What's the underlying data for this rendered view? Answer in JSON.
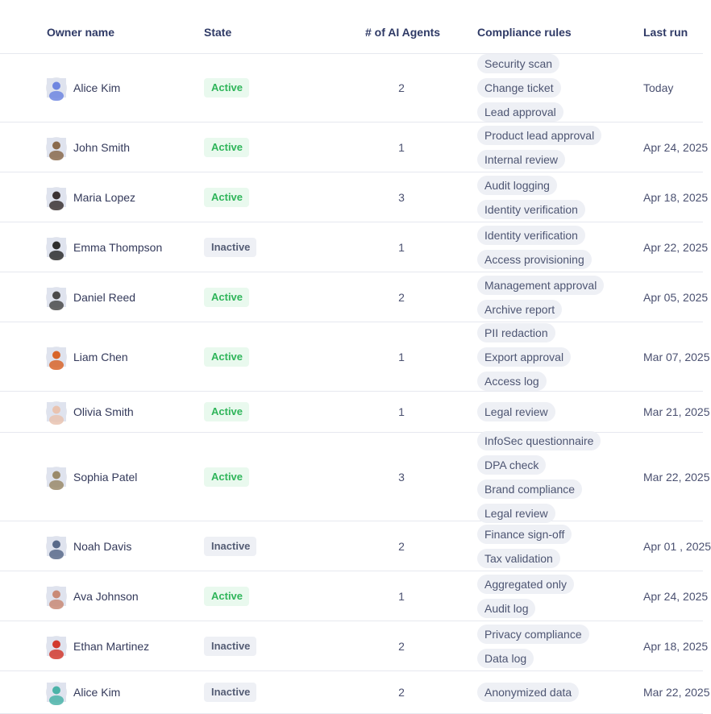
{
  "header": {
    "owner": "Owner name",
    "state": "State",
    "agents": "# of AI Agents",
    "rules": "Compliance rules",
    "last": "Last run"
  },
  "rows": [
    {
      "name": "Alice Kim",
      "state": "Active",
      "agents": "2",
      "rules": [
        "Security scan",
        "Change ticket",
        "Lead approval"
      ],
      "last": "Today",
      "avatar": "#6f86e0"
    },
    {
      "name": "John Smith",
      "state": "Active",
      "agents": "1",
      "rules": [
        "Product lead approval",
        "Internal review"
      ],
      "last": "Apr 24, 2025",
      "avatar": "#8a6a4c"
    },
    {
      "name": "Maria Lopez",
      "state": "Active",
      "agents": "3",
      "rules": [
        "Audit logging",
        "Identity verification"
      ],
      "last": "Apr 18, 2025",
      "avatar": "#3b3333"
    },
    {
      "name": "Emma Thompson",
      "state": "Inactive",
      "agents": "1",
      "rules": [
        "Identity verification",
        "Access provisioning"
      ],
      "last": "Apr 22, 2025",
      "avatar": "#2d2d2d"
    },
    {
      "name": "Daniel Reed",
      "state": "Active",
      "agents": "2",
      "rules": [
        "Management approval",
        "Archive report"
      ],
      "last": "Apr 05, 2025",
      "avatar": "#4a4a4a"
    },
    {
      "name": "Liam Chen",
      "state": "Active",
      "agents": "1",
      "rules": [
        "PII redaction",
        "Export approval",
        "Access log"
      ],
      "last": "Mar 07, 2025",
      "avatar": "#d8652a"
    },
    {
      "name": "Olivia Smith",
      "state": "Active",
      "agents": "1",
      "rules": [
        "Legal review"
      ],
      "last": "Mar 21, 2025",
      "avatar": "#e9c3b0"
    },
    {
      "name": "Sophia Patel",
      "state": "Active",
      "agents": "3",
      "rules": [
        "InfoSec questionnaire",
        "DPA check",
        "Brand compliance",
        "Legal review"
      ],
      "last": "Mar 22, 2025",
      "avatar": "#9a8a6a"
    },
    {
      "name": "Noah Davis",
      "state": "Inactive",
      "agents": "2",
      "rules": [
        "Finance sign-off",
        "Tax validation"
      ],
      "last": "Apr 01 , 2025",
      "avatar": "#596a8a"
    },
    {
      "name": "Ava Johnson",
      "state": "Active",
      "agents": "1",
      "rules": [
        "Aggregated only",
        "Audit log"
      ],
      "last": "Apr 24, 2025",
      "avatar": "#c98a76"
    },
    {
      "name": "Ethan Martinez",
      "state": "Inactive",
      "agents": "2",
      "rules": [
        "Privacy compliance",
        "Data log"
      ],
      "last": "Apr 18, 2025",
      "avatar": "#d23a2e"
    },
    {
      "name": "Alice Kim",
      "state": "Inactive",
      "agents": "2",
      "rules": [
        "Anonymized data"
      ],
      "last": "Mar 22, 2025",
      "avatar": "#4bb3a8"
    }
  ]
}
